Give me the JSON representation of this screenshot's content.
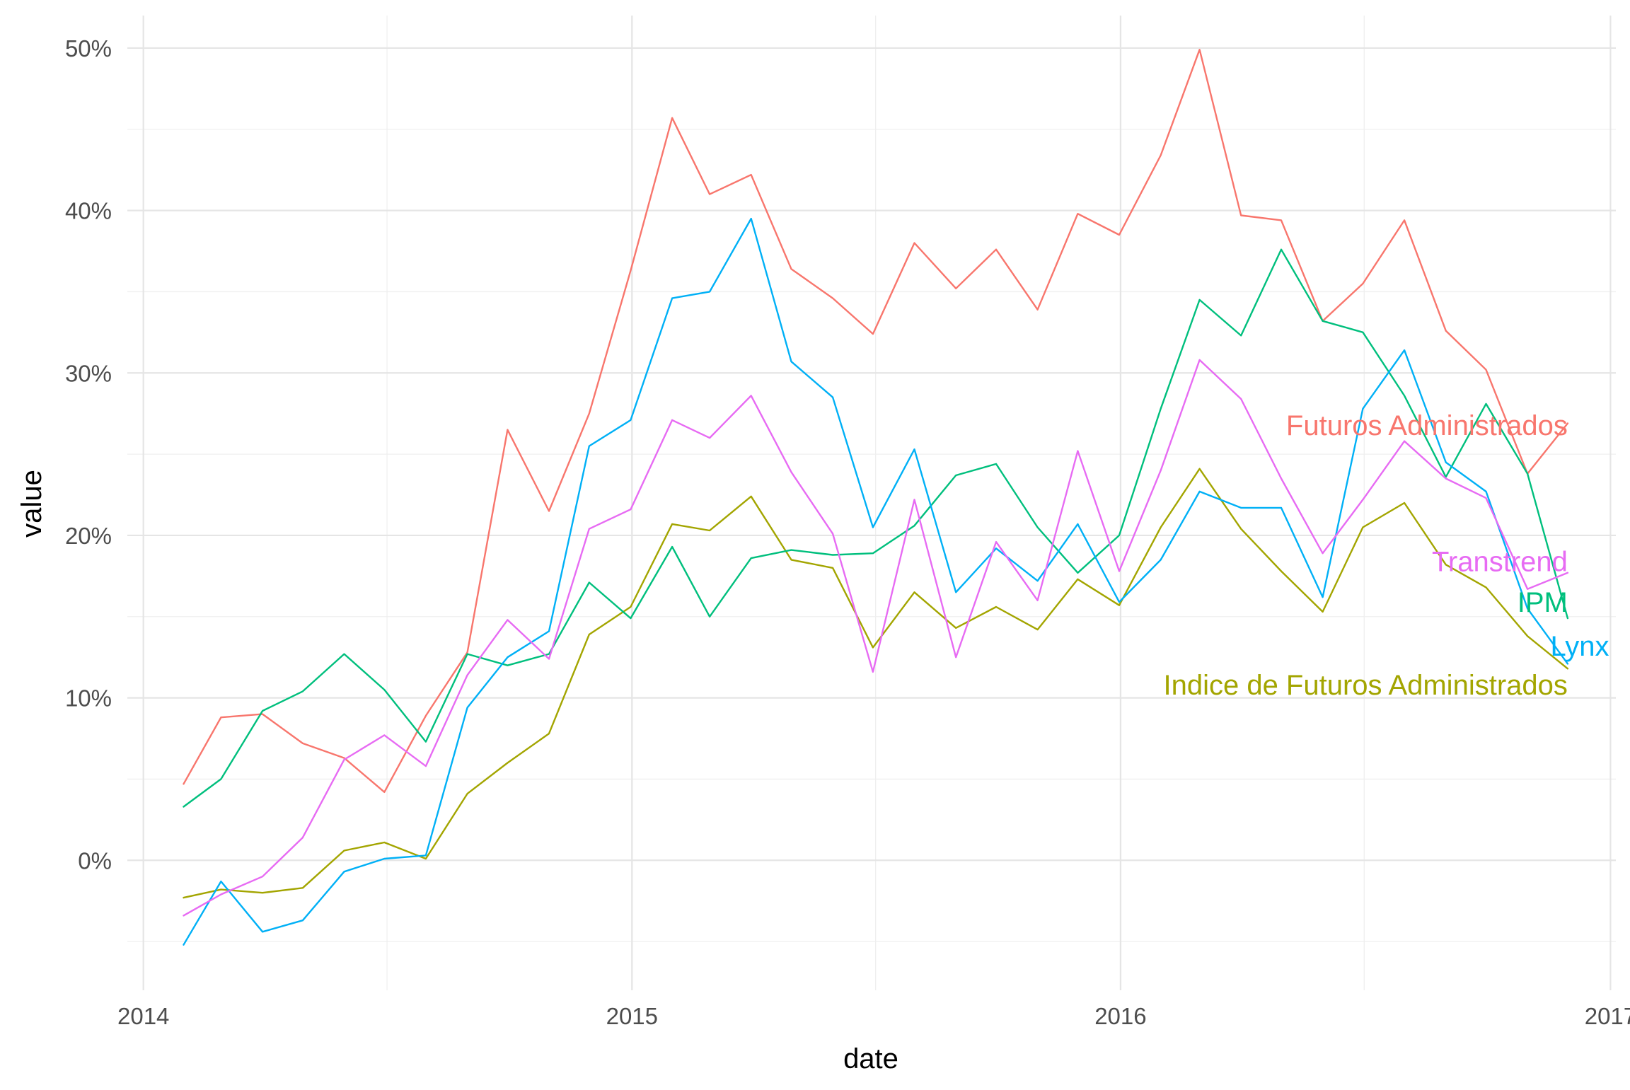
{
  "chart_data": {
    "type": "line",
    "xlabel": "date",
    "ylabel": "value",
    "x_axis": {
      "type": "date",
      "range": [
        "2013-12-20",
        "2017-01-05"
      ],
      "ticks": [
        {
          "value": "2014-01-01",
          "label": "2014"
        },
        {
          "value": "2015-01-01",
          "label": "2015"
        },
        {
          "value": "2016-01-01",
          "label": "2016"
        },
        {
          "value": "2017-01-01",
          "label": "2017"
        }
      ],
      "minor_ticks": [
        "2014-07-02",
        "2015-07-02",
        "2016-07-01"
      ]
    },
    "y_axis": {
      "range": [
        -0.08,
        0.52
      ],
      "ticks": [
        {
          "value": 0.0,
          "label": "0%"
        },
        {
          "value": 0.1,
          "label": "10%"
        },
        {
          "value": 0.2,
          "label": "20%"
        },
        {
          "value": 0.3,
          "label": "30%"
        },
        {
          "value": 0.4,
          "label": "40%"
        },
        {
          "value": 0.5,
          "label": "50%"
        }
      ],
      "minor_ticks": [
        -0.05,
        0.05,
        0.15,
        0.25,
        0.35,
        0.45
      ]
    },
    "grid": true,
    "legend": "none",
    "x": [
      "2014-01-31",
      "2014-02-28",
      "2014-03-31",
      "2014-04-30",
      "2014-05-31",
      "2014-06-30",
      "2014-07-31",
      "2014-08-31",
      "2014-09-30",
      "2014-10-31",
      "2014-11-30",
      "2014-12-31",
      "2015-01-31",
      "2015-02-28",
      "2015-03-31",
      "2015-04-30",
      "2015-05-31",
      "2015-06-30",
      "2015-07-31",
      "2015-08-31",
      "2015-09-30",
      "2015-10-31",
      "2015-11-30",
      "2015-12-31",
      "2016-01-31",
      "2016-02-29",
      "2016-03-31",
      "2016-04-30",
      "2016-05-31",
      "2016-06-30",
      "2016-07-31",
      "2016-08-31",
      "2016-09-30",
      "2016-10-31",
      "2016-11-30"
    ],
    "series": [
      {
        "name": "Futuros Administrados",
        "color": "#F8766D",
        "values": [
          0.047,
          0.088,
          0.09,
          0.072,
          0.063,
          0.042,
          0.089,
          0.128,
          0.265,
          0.215,
          0.275,
          0.363,
          0.457,
          0.41,
          0.422,
          0.364,
          0.346,
          0.324,
          0.38,
          0.352,
          0.376,
          0.339,
          0.398,
          0.385,
          0.434,
          0.499,
          0.397,
          0.394,
          0.332,
          0.355,
          0.394,
          0.326,
          0.302,
          0.238,
          0.269
        ]
      },
      {
        "name": "Indice de Futuros Administrados",
        "color": "#A3A500",
        "values": [
          -0.023,
          -0.018,
          -0.02,
          -0.017,
          0.006,
          0.011,
          0.001,
          0.041,
          0.06,
          0.078,
          0.139,
          0.156,
          0.207,
          0.203,
          0.224,
          0.185,
          0.18,
          0.131,
          0.165,
          0.143,
          0.156,
          0.142,
          0.173,
          0.157,
          0.205,
          0.241,
          0.204,
          0.178,
          0.153,
          0.205,
          0.22,
          0.182,
          0.168,
          0.138,
          0.118
        ]
      },
      {
        "name": "IPM",
        "color": "#00BF7D",
        "values": [
          0.033,
          0.05,
          0.092,
          0.104,
          0.127,
          0.105,
          0.073,
          0.127,
          0.12,
          0.127,
          0.171,
          0.149,
          0.193,
          0.15,
          0.186,
          0.191,
          0.188,
          0.189,
          0.206,
          0.237,
          0.244,
          0.205,
          0.177,
          0.2,
          0.278,
          0.345,
          0.323,
          0.376,
          0.332,
          0.325,
          0.286,
          0.236,
          0.281,
          0.238,
          0.149
        ]
      },
      {
        "name": "Lynx",
        "color": "#00B0F6",
        "values": [
          -0.052,
          -0.013,
          -0.044,
          -0.037,
          -0.007,
          0.001,
          0.003,
          0.094,
          0.125,
          0.141,
          0.255,
          0.271,
          0.346,
          0.35,
          0.395,
          0.307,
          0.285,
          0.205,
          0.253,
          0.165,
          0.192,
          0.172,
          0.207,
          0.159,
          0.185,
          0.227,
          0.217,
          0.217,
          0.162,
          0.278,
          0.314,
          0.245,
          0.227,
          0.155,
          0.121
        ]
      },
      {
        "name": "Transtrend",
        "color": "#E76BF3",
        "values": [
          -0.034,
          -0.021,
          -0.01,
          0.014,
          0.062,
          0.077,
          0.058,
          0.114,
          0.148,
          0.124,
          0.204,
          0.216,
          0.271,
          0.26,
          0.286,
          0.239,
          0.201,
          0.116,
          0.222,
          0.125,
          0.196,
          0.16,
          0.252,
          0.178,
          0.24,
          0.308,
          0.284,
          0.235,
          0.189,
          0.222,
          0.258,
          0.235,
          0.223,
          0.167,
          0.177
        ]
      }
    ],
    "annotations": [
      {
        "text": "Futuros Administrados",
        "x": "2016-11-30",
        "y": 0.268,
        "color": "#F8766D"
      },
      {
        "text": "Transtrend",
        "x": "2016-11-30",
        "y": 0.184,
        "color": "#E76BF3"
      },
      {
        "text": "IPM",
        "x": "2016-11-30",
        "y": 0.159,
        "color": "#00BF7D"
      },
      {
        "text": "Lynx",
        "x": "2016-12-31",
        "y": 0.132,
        "color": "#00B0F6"
      },
      {
        "text": "Indice de Futuros Administrados",
        "x": "2016-11-30",
        "y": 0.108,
        "color": "#A3A500"
      }
    ]
  }
}
